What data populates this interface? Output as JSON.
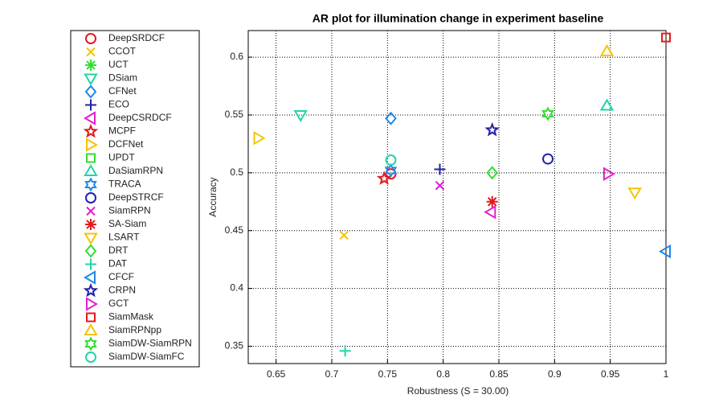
{
  "chart_data": {
    "type": "scatter",
    "title": "AR plot for illumination change in experiment baseline",
    "x_label": "Robustness (S = 30.00)",
    "y_label": "Accuracy",
    "xlim": [
      0.625,
      1.0
    ],
    "ylim": [
      0.335,
      0.623
    ],
    "xticks": [
      0.65,
      0.7,
      0.75,
      0.8,
      0.85,
      0.9,
      0.95,
      1
    ],
    "yticks": [
      0.35,
      0.4,
      0.45,
      0.5,
      0.55,
      0.6
    ],
    "grid": true,
    "legend": "outside-left",
    "series": [
      {
        "name": "DeepSRDCF",
        "color": "#e41a1c",
        "marker": "circle",
        "x": [
          0.753
        ],
        "values": [
          0.499
        ]
      },
      {
        "name": "CCOT",
        "color": "#f5c400",
        "marker": "x",
        "x": [
          0.711
        ],
        "values": [
          0.446
        ]
      },
      {
        "name": "UCT",
        "color": "#33dd33",
        "marker": "asterisk",
        "x": [
          null
        ],
        "values": [
          null
        ]
      },
      {
        "name": "DSiam",
        "color": "#22d4a8",
        "marker": "triangle-down",
        "x": [
          0.672
        ],
        "values": [
          0.55
        ]
      },
      {
        "name": "CFNet",
        "color": "#1e88e5",
        "marker": "diamond",
        "x": [
          0.753
        ],
        "values": [
          0.547
        ]
      },
      {
        "name": "ECO",
        "color": "#2222aa",
        "marker": "plus",
        "x": [
          0.797
        ],
        "values": [
          0.503
        ]
      },
      {
        "name": "DeepCSRDCF",
        "color": "#e020d0",
        "marker": "triangle-left",
        "x": [
          0.843
        ],
        "values": [
          0.466
        ]
      },
      {
        "name": "MCPF",
        "color": "#e41a1c",
        "marker": "star",
        "x": [
          0.747
        ],
        "values": [
          0.495
        ]
      },
      {
        "name": "DCFNet",
        "color": "#f5c400",
        "marker": "triangle-right",
        "x": [
          0.634
        ],
        "values": [
          0.53
        ]
      },
      {
        "name": "UPDT",
        "color": "#33dd33",
        "marker": "square",
        "x": [
          null
        ],
        "values": [
          null
        ]
      },
      {
        "name": "DaSiamRPN",
        "color": "#22d4a8",
        "marker": "triangle-up",
        "x": [
          0.947
        ],
        "values": [
          0.558
        ]
      },
      {
        "name": "TRACA",
        "color": "#1e88e5",
        "marker": "hexagram",
        "x": [
          0.753
        ],
        "values": [
          0.502
        ]
      },
      {
        "name": "DeepSTRCF",
        "color": "#2222aa",
        "marker": "circle",
        "x": [
          0.894
        ],
        "values": [
          0.512
        ]
      },
      {
        "name": "SiamRPN",
        "color": "#e020d0",
        "marker": "x",
        "x": [
          0.797
        ],
        "values": [
          0.489
        ]
      },
      {
        "name": "SA-Siam",
        "color": "#e41a1c",
        "marker": "asterisk",
        "x": [
          0.844
        ],
        "values": [
          0.475
        ]
      },
      {
        "name": "LSART",
        "color": "#f5c400",
        "marker": "triangle-down",
        "x": [
          0.972
        ],
        "values": [
          0.483
        ]
      },
      {
        "name": "DRT",
        "color": "#33dd33",
        "marker": "diamond",
        "x": [
          0.844
        ],
        "values": [
          0.5
        ]
      },
      {
        "name": "DAT",
        "color": "#22d4a8",
        "marker": "plus",
        "x": [
          0.712
        ],
        "values": [
          0.346
        ]
      },
      {
        "name": "CFCF",
        "color": "#1e88e5",
        "marker": "triangle-left",
        "x": [
          1.0
        ],
        "values": [
          0.432
        ]
      },
      {
        "name": "CRPN",
        "color": "#2222aa",
        "marker": "star",
        "x": [
          0.844
        ],
        "values": [
          0.537
        ]
      },
      {
        "name": "GCT",
        "color": "#e020d0",
        "marker": "triangle-right",
        "x": [
          0.948
        ],
        "values": [
          0.499
        ]
      },
      {
        "name": "SiamMask",
        "color": "#e41a1c",
        "marker": "square",
        "x": [
          1.0
        ],
        "values": [
          0.617
        ]
      },
      {
        "name": "SiamRPNpp",
        "color": "#f5c400",
        "marker": "triangle-up",
        "x": [
          0.947
        ],
        "values": [
          0.605
        ]
      },
      {
        "name": "SiamDW-SiamRPN",
        "color": "#33dd33",
        "marker": "hexagram",
        "x": [
          0.894
        ],
        "values": [
          0.551
        ]
      },
      {
        "name": "SiamDW-SiamFC",
        "color": "#22d4a8",
        "marker": "circle",
        "x": [
          0.753
        ],
        "values": [
          0.511
        ]
      }
    ]
  }
}
